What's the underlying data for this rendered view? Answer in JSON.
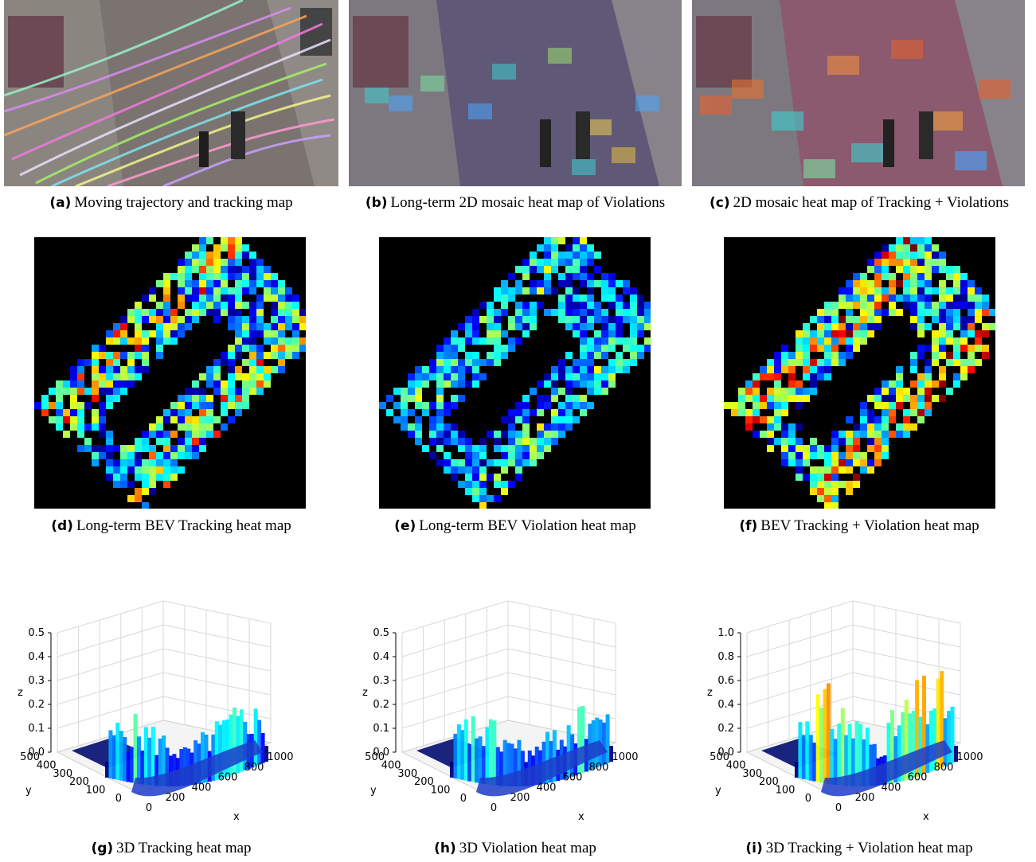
{
  "figures": {
    "a": {
      "label": "(a)",
      "caption": "Moving trajectory and tracking map"
    },
    "b": {
      "label": "(b)",
      "caption": "Long-term 2D mosaic heat map of Violations"
    },
    "c": {
      "label": "(c)",
      "caption": "2D mosaic heat map of Tracking + Violations"
    },
    "d": {
      "label": "(d)",
      "caption": "Long-term BEV Tracking heat map"
    },
    "e": {
      "label": "(e)",
      "caption": "Long-term BEV Violation heat map"
    },
    "f": {
      "label": "(f)",
      "caption": "BEV Tracking + Violation heat map"
    },
    "g": {
      "label": "(g)",
      "caption": "3D Tracking heat map"
    },
    "h": {
      "label": "(h)",
      "caption": "3D Violation heat map"
    },
    "i": {
      "label": "(i)",
      "caption": "3D Tracking + Violation heat map"
    }
  },
  "chart_data": [
    {
      "type": "surface",
      "xlabel": "x",
      "ylabel": "y",
      "zlabel": "z",
      "xticks": [
        "0",
        "200",
        "400",
        "600",
        "800",
        "1000"
      ],
      "yticks": [
        "0",
        "100",
        "200",
        "300",
        "400",
        "500"
      ],
      "zticks": [
        "0.0",
        "0.1",
        "0.2",
        "0.3",
        "0.4",
        "0.5"
      ],
      "zlim": [
        0,
        0.5
      ]
    },
    {
      "type": "surface",
      "xlabel": "x",
      "ylabel": "y",
      "zlabel": "z",
      "xticks": [
        "0",
        "200",
        "400",
        "600",
        "800",
        "1000"
      ],
      "yticks": [
        "0",
        "100",
        "200",
        "300",
        "400",
        "500"
      ],
      "zticks": [
        "0.0",
        "0.1",
        "0.2",
        "0.3",
        "0.4",
        "0.5"
      ],
      "zlim": [
        0,
        0.5
      ]
    },
    {
      "type": "surface",
      "xlabel": "x",
      "ylabel": "y",
      "zlabel": "z",
      "xticks": [
        "0",
        "200",
        "400",
        "600",
        "800",
        "1000"
      ],
      "yticks": [
        "0",
        "100",
        "200",
        "300",
        "400",
        "500"
      ],
      "zticks": [
        "0.0",
        "0.2",
        "0.4",
        "0.6",
        "0.8",
        "1.0"
      ],
      "zlim": [
        0,
        1.0
      ]
    }
  ]
}
